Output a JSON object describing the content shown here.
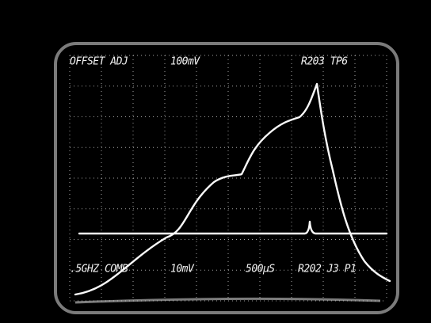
{
  "screen": {
    "top_labels": [
      "OFFSET ADJ",
      "100mV",
      "R203 TP6"
    ],
    "bottom_labels": [
      ".5GHZ COMB",
      "10mV",
      "500µS",
      "R202 J3 P1"
    ]
  }
}
